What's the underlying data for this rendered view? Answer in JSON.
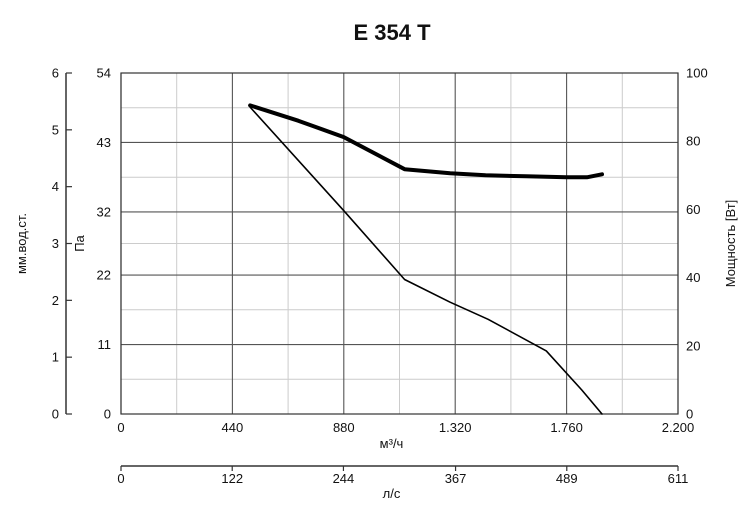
{
  "chart_data": {
    "type": "line",
    "title": "E 354 T",
    "x_axis": {
      "label": "м³/ч",
      "range": [
        0,
        2200
      ],
      "ticks": [
        0,
        440,
        880,
        1320,
        1760,
        2200
      ],
      "tick_labels": [
        "0",
        "440",
        "880",
        "1.320",
        "1.760",
        "2.200"
      ]
    },
    "x_axis_secondary": {
      "label": "л/с",
      "range": [
        0,
        611
      ],
      "ticks": [
        0,
        122,
        244,
        367,
        489,
        611
      ],
      "tick_labels": [
        "0",
        "122",
        "244",
        "367",
        "489",
        "611"
      ]
    },
    "y_axis_pa": {
      "label": "Па",
      "range": [
        0,
        54
      ],
      "ticks": [
        0,
        11,
        22,
        32,
        43,
        54
      ],
      "tick_labels": [
        "0",
        "11",
        "22",
        "32",
        "43",
        "54"
      ]
    },
    "y_axis_mm": {
      "label": "мм.вод.ст.",
      "range": [
        0,
        6
      ],
      "ticks": [
        0,
        1,
        2,
        3,
        4,
        5,
        6
      ],
      "tick_labels": [
        "0",
        "1",
        "2",
        "3",
        "4",
        "5",
        "6"
      ]
    },
    "y_axis_power": {
      "label": "Мощность [Вт]",
      "range": [
        0,
        100
      ],
      "ticks": [
        0,
        20,
        40,
        60,
        80,
        100
      ],
      "tick_labels": [
        "0",
        "20",
        "40",
        "60",
        "80",
        "100"
      ]
    },
    "grid": true,
    "series": [
      {
        "axis": "pressure_pa",
        "color": "#000000",
        "line_weight": "thin",
        "x": [
          510,
          880,
          1120,
          1300,
          1450,
          1680,
          1820,
          1900
        ],
        "y": [
          48.6,
          32.2,
          21.3,
          17.7,
          15.0,
          10.0,
          3.8,
          0
        ]
      },
      {
        "axis": "power_w",
        "color": "#000000",
        "line_weight": "thick",
        "x": [
          510,
          700,
          880,
          1120,
          1300,
          1440,
          1600,
          1760,
          1840,
          1900
        ],
        "y": [
          90.5,
          86.0,
          81.2,
          71.8,
          70.6,
          70.0,
          69.7,
          69.4,
          69.4,
          70.3
        ]
      }
    ]
  }
}
